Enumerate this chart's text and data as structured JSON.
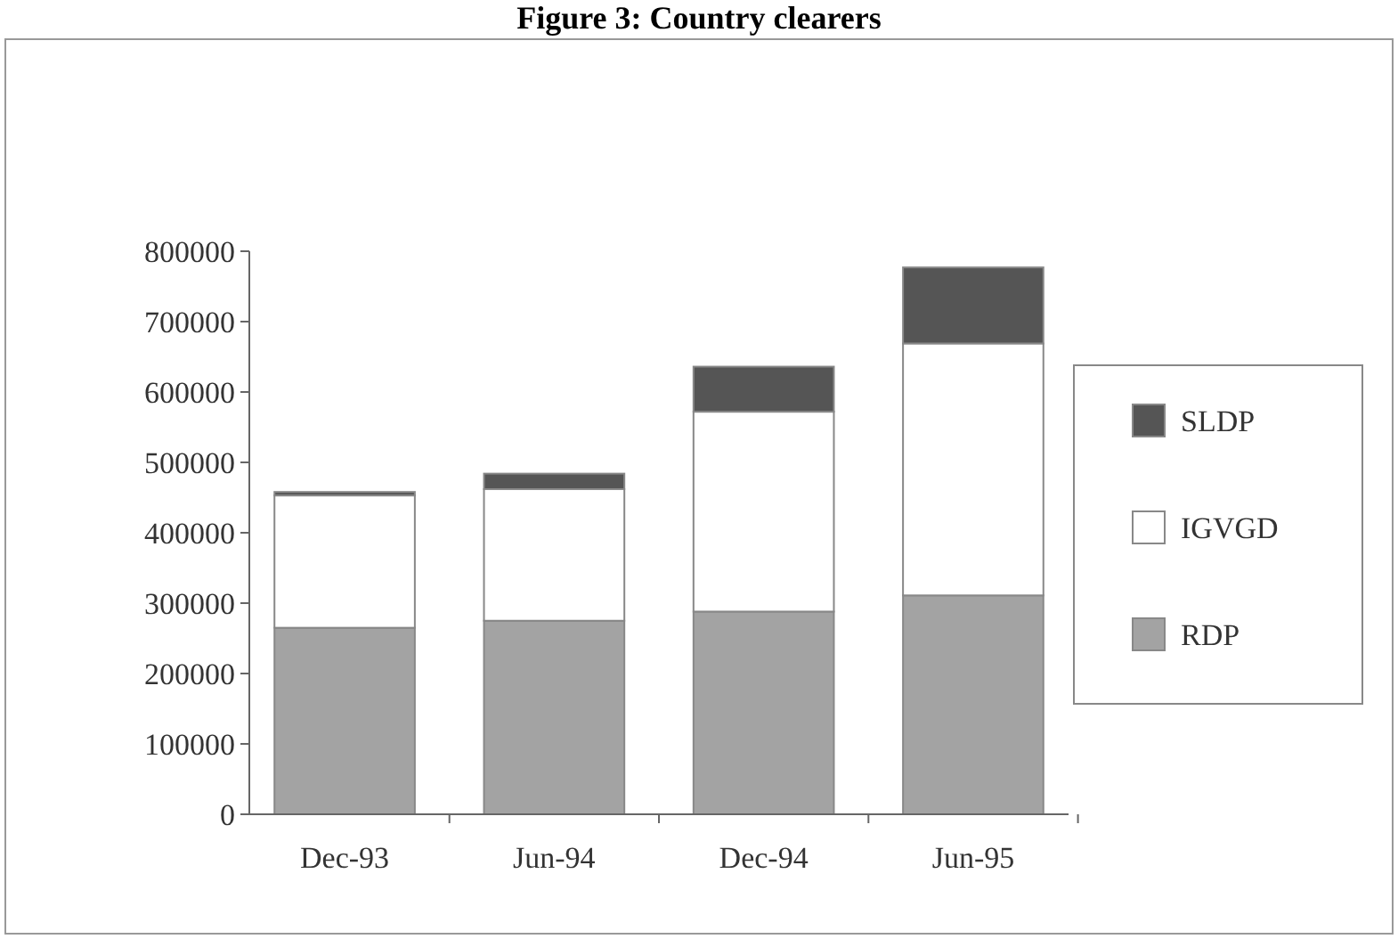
{
  "chart_data": {
    "type": "bar",
    "title": "Figure 3: Country clearers",
    "stacked": true,
    "categories": [
      "Dec-93",
      "Jun-94",
      "Dec-94",
      "Jun-95"
    ],
    "series": [
      {
        "name": "RDP",
        "color": "#a3a3a3",
        "values": [
          265000,
          275000,
          288000,
          311000
        ]
      },
      {
        "name": "IGVGD",
        "color": "#ffffff",
        "values": [
          188000,
          187000,
          284000,
          358000
        ]
      },
      {
        "name": "SLDP",
        "color": "#555555",
        "values": [
          5000,
          22000,
          64000,
          108000
        ]
      }
    ],
    "ylim": [
      0,
      800000
    ],
    "yticks": [
      0,
      100000,
      200000,
      300000,
      400000,
      500000,
      600000,
      700000,
      800000
    ],
    "legend": "right"
  }
}
